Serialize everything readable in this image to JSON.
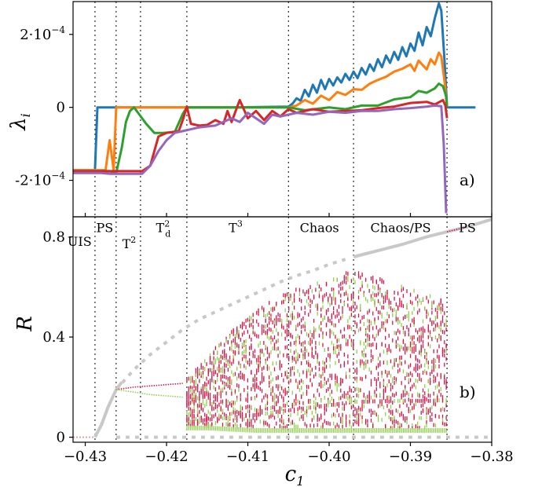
{
  "chart_data": [
    {
      "type": "line",
      "panel_tag": "a)",
      "ylabel_main": "λ",
      "ylabel_sub": "i",
      "ylim": [
        -0.0003,
        0.00029
      ],
      "yticks": [
        {
          "value": 0.0002,
          "label": "2·10",
          "exp": "−4"
        },
        {
          "value": 0,
          "label": "0",
          "exp": ""
        },
        {
          "value": -0.0002,
          "label": "-2·10",
          "exp": "−4"
        }
      ],
      "series": [
        {
          "color": "#1f77b4",
          "points": [
            [
              -0.4315,
              -0.000172
            ],
            [
              -0.4288,
              -0.000172
            ],
            [
              -0.4285,
              0
            ],
            [
              -0.42,
              0
            ],
            [
              -0.412,
              0
            ],
            [
              -0.405,
              2e-06
            ],
            [
              -0.4045,
              1e-05
            ],
            [
              -0.404,
              2.5e-05
            ],
            [
              -0.4035,
              1.8e-05
            ],
            [
              -0.403,
              4.8e-05
            ],
            [
              -0.4025,
              3e-05
            ],
            [
              -0.402,
              6.2e-05
            ],
            [
              -0.4015,
              4e-05
            ],
            [
              -0.401,
              7.5e-05
            ],
            [
              -0.4005,
              5e-05
            ],
            [
              -0.4,
              7.8e-05
            ],
            [
              -0.3995,
              6e-05
            ],
            [
              -0.399,
              8.2e-05
            ],
            [
              -0.3985,
              6.8e-05
            ],
            [
              -0.398,
              9.2e-05
            ],
            [
              -0.3975,
              7.5e-05
            ],
            [
              -0.397,
              9.8e-05
            ],
            [
              -0.3965,
              8e-05
            ],
            [
              -0.396,
              0.000108
            ],
            [
              -0.3955,
              9e-05
            ],
            [
              -0.395,
              0.000118
            ],
            [
              -0.3945,
              0.0001
            ],
            [
              -0.394,
              0.000132
            ],
            [
              -0.3935,
              0.00011
            ],
            [
              -0.393,
              0.000142
            ],
            [
              -0.3925,
              0.000122
            ],
            [
              -0.392,
              0.000152
            ],
            [
              -0.3915,
              0.00013
            ],
            [
              -0.391,
              0.000165
            ],
            [
              -0.3905,
              0.00014
            ],
            [
              -0.39,
              0.000175
            ],
            [
              -0.3895,
              0.000155
            ],
            [
              -0.389,
              0.000205
            ],
            [
              -0.3885,
              0.00017
            ],
            [
              -0.388,
              0.00022
            ],
            [
              -0.3875,
              0.000195
            ],
            [
              -0.387,
              0.000245
            ],
            [
              -0.3865,
              0.000285
            ],
            [
              -0.3862,
              0.000265
            ],
            [
              -0.3858,
              0.000125
            ],
            [
              -0.3855,
              0
            ],
            [
              -0.382,
              0
            ]
          ]
        },
        {
          "color": "#ff7f0e",
          "points": [
            [
              -0.4315,
              -0.000172
            ],
            [
              -0.4275,
              -0.000172
            ],
            [
              -0.427,
              -9e-05
            ],
            [
              -0.4265,
              -0.000172
            ],
            [
              -0.4262,
              0
            ],
            [
              -0.42,
              0
            ],
            [
              -0.412,
              0
            ],
            [
              -0.405,
              0
            ],
            [
              -0.404,
              5e-06
            ],
            [
              -0.403,
              2e-05
            ],
            [
              -0.402,
              1e-05
            ],
            [
              -0.401,
              3.2e-05
            ],
            [
              -0.4,
              2e-05
            ],
            [
              -0.399,
              4.2e-05
            ],
            [
              -0.398,
              3.4e-05
            ],
            [
              -0.397,
              5e-05
            ],
            [
              -0.396,
              4.8e-05
            ],
            [
              -0.395,
              6.5e-05
            ],
            [
              -0.394,
              7.5e-05
            ],
            [
              -0.393,
              8.4e-05
            ],
            [
              -0.392,
              9.8e-05
            ],
            [
              -0.391,
              0.000106
            ],
            [
              -0.39,
              0.000118
            ],
            [
              -0.3895,
              0.0001
            ],
            [
              -0.389,
              0.000128
            ],
            [
              -0.388,
              0.000104
            ],
            [
              -0.3875,
              0.000132
            ],
            [
              -0.387,
              0.000118
            ],
            [
              -0.3865,
              0.00015
            ],
            [
              -0.3862,
              0.00014
            ],
            [
              -0.3858,
              7e-05
            ],
            [
              -0.3855,
              0
            ]
          ]
        },
        {
          "color": "#2ca02c",
          "points": [
            [
              -0.4315,
              -0.000175
            ],
            [
              -0.427,
              -0.000175
            ],
            [
              -0.4262,
              -0.00018
            ],
            [
              -0.4255,
              -0.00011
            ],
            [
              -0.425,
              -4e-05
            ],
            [
              -0.4245,
              -1e-05
            ],
            [
              -0.424,
              0
            ],
            [
              -0.4235,
              -1.5e-05
            ],
            [
              -0.4225,
              -4.5e-05
            ],
            [
              -0.4215,
              -7e-05
            ],
            [
              -0.4205,
              -7e-05
            ],
            [
              -0.419,
              -6.8e-05
            ],
            [
              -0.418,
              -1.8e-05
            ],
            [
              -0.4175,
              0
            ],
            [
              -0.412,
              0
            ],
            [
              -0.405,
              0
            ],
            [
              -0.403,
              -8e-06
            ],
            [
              -0.4,
              0
            ],
            [
              -0.398,
              -5e-06
            ],
            [
              -0.396,
              5e-06
            ],
            [
              -0.394,
              5e-06
            ],
            [
              -0.392,
              2.2e-05
            ],
            [
              -0.39,
              2.8e-05
            ],
            [
              -0.389,
              4.5e-05
            ],
            [
              -0.388,
              4e-05
            ],
            [
              -0.387,
              5.2e-05
            ],
            [
              -0.3865,
              6.5e-05
            ],
            [
              -0.386,
              5.8e-05
            ],
            [
              -0.3856,
              3e-05
            ],
            [
              -0.3855,
              0
            ]
          ]
        },
        {
          "color": "#d62728",
          "points": [
            [
              -0.4315,
              -0.000175
            ],
            [
              -0.423,
              -0.000175
            ],
            [
              -0.422,
              -0.00016
            ],
            [
              -0.421,
              -8e-05
            ],
            [
              -0.42,
              -7e-05
            ],
            [
              -0.4185,
              -6.5e-05
            ],
            [
              -0.418,
              -3.5e-05
            ],
            [
              -0.4175,
              2e-06
            ],
            [
              -0.417,
              -4.5e-05
            ],
            [
              -0.416,
              -5e-05
            ],
            [
              -0.415,
              -4.8e-05
            ],
            [
              -0.414,
              -3.5e-05
            ],
            [
              -0.413,
              -4.5e-05
            ],
            [
              -0.4125,
              -1e-05
            ],
            [
              -0.412,
              -4e-05
            ],
            [
              -0.411,
              2e-05
            ],
            [
              -0.41,
              -3e-05
            ],
            [
              -0.409,
              -1e-05
            ],
            [
              -0.408,
              -3.5e-05
            ],
            [
              -0.407,
              -1e-05
            ],
            [
              -0.406,
              -2.5e-05
            ],
            [
              -0.405,
              -5e-06
            ],
            [
              -0.404,
              -1.5e-05
            ],
            [
              -0.402,
              -5e-06
            ],
            [
              -0.4,
              -1.2e-05
            ],
            [
              -0.398,
              -1e-05
            ],
            [
              -0.396,
              -8e-06
            ],
            [
              -0.394,
              -2e-06
            ],
            [
              -0.392,
              2e-06
            ],
            [
              -0.39,
              1.2e-05
            ],
            [
              -0.388,
              1.5e-05
            ],
            [
              -0.387,
              8e-06
            ],
            [
              -0.386,
              2e-05
            ],
            [
              -0.3857,
              5e-06
            ],
            [
              -0.3855,
              -3e-05
            ]
          ]
        },
        {
          "color": "#9467bd",
          "points": [
            [
              -0.4315,
              -0.00018
            ],
            [
              -0.429,
              -0.00018
            ],
            [
              -0.428,
              -0.00018
            ],
            [
              -0.427,
              -0.000182
            ],
            [
              -0.423,
              -0.000182
            ],
            [
              -0.422,
              -0.00016
            ],
            [
              -0.421,
              -0.00012
            ],
            [
              -0.42,
              -9e-05
            ],
            [
              -0.419,
              -7e-05
            ],
            [
              -0.418,
              -6.5e-05
            ],
            [
              -0.416,
              -5.5e-05
            ],
            [
              -0.414,
              -5e-05
            ],
            [
              -0.412,
              -3e-05
            ],
            [
              -0.411,
              -4e-05
            ],
            [
              -0.41,
              -1.5e-05
            ],
            [
              -0.409,
              -3e-05
            ],
            [
              -0.408,
              -4.5e-05
            ],
            [
              -0.407,
              -2e-05
            ],
            [
              -0.406,
              -2.5e-05
            ],
            [
              -0.404,
              -1.5e-05
            ],
            [
              -0.402,
              -2e-05
            ],
            [
              -0.4,
              -1.2e-05
            ],
            [
              -0.398,
              -1.5e-05
            ],
            [
              -0.396,
              -1e-05
            ],
            [
              -0.394,
              -1e-05
            ],
            [
              -0.392,
              -5e-06
            ],
            [
              -0.39,
              -2e-06
            ],
            [
              -0.388,
              2e-06
            ],
            [
              -0.387,
              5e-06
            ],
            [
              -0.3862,
              3e-06
            ],
            [
              -0.3859,
              -0.0001
            ],
            [
              -0.3856,
              -0.00029
            ]
          ]
        }
      ]
    },
    {
      "type": "scatter",
      "panel_tag": "b)",
      "ylabel": "R",
      "xlabel_main": "c",
      "xlabel_sub": "1",
      "xlim": [
        -0.4315,
        -0.38
      ],
      "ylim": [
        -0.02,
        0.88
      ],
      "xticks": [
        {
          "value": -0.43,
          "label": "−0.43"
        },
        {
          "value": -0.42,
          "label": "−0.42"
        },
        {
          "value": -0.41,
          "label": "−0.41"
        },
        {
          "value": -0.4,
          "label": "−0.40"
        },
        {
          "value": -0.39,
          "label": "−0.39"
        },
        {
          "value": -0.38,
          "label": "−0.38"
        }
      ],
      "yticks": [
        {
          "value": 0,
          "label": "0"
        },
        {
          "value": 0.4,
          "label": "0.4"
        },
        {
          "value": 0.8,
          "label": "0.8"
        }
      ],
      "regimes": [
        {
          "label": "UIS",
          "sup": "",
          "sub": "",
          "x": -0.4307,
          "y": 0.78
        },
        {
          "label": "PS",
          "sup": "",
          "sub": "",
          "x": -0.4276,
          "y": 0.835
        },
        {
          "label": "T",
          "sup": "2",
          "sub": "",
          "x": -0.4246,
          "y": 0.77
        },
        {
          "label": "T",
          "sup": "2",
          "sub": "d",
          "x": -0.4204,
          "y": 0.835
        },
        {
          "label": "T",
          "sup": "3",
          "sub": "",
          "x": -0.4115,
          "y": 0.835
        },
        {
          "label": "Chaos",
          "sup": "",
          "sub": "",
          "x": -0.4012,
          "y": 0.835
        },
        {
          "label": "Chaos/PS",
          "sup": "",
          "sub": "",
          "x": -0.3912,
          "y": 0.835
        },
        {
          "label": "PS",
          "sup": "",
          "sub": "",
          "x": -0.383,
          "y": 0.835
        }
      ],
      "boundaries": [
        -0.4288,
        -0.4262,
        -0.4232,
        -0.4175,
        -0.405,
        -0.397,
        -0.3855
      ],
      "colors": {
        "upper": "#d11a4a",
        "lower": "#8fd14f",
        "branch": "#c8c8c8",
        "uis": "#e8a0a0"
      },
      "stable_branch": [
        [
          -0.4288,
          0.0
        ],
        [
          -0.428,
          0.05
        ],
        [
          -0.4272,
          0.12
        ],
        [
          -0.4262,
          0.19
        ],
        [
          -0.4255,
          0.22
        ]
      ],
      "unstable_branch": [
        [
          -0.4262,
          0.19
        ],
        [
          -0.424,
          0.27
        ],
        [
          -0.422,
          0.33
        ],
        [
          -0.42,
          0.38
        ],
        [
          -0.418,
          0.43
        ],
        [
          -0.416,
          0.47
        ],
        [
          -0.414,
          0.5
        ],
        [
          -0.412,
          0.53
        ],
        [
          -0.41,
          0.56
        ],
        [
          -0.408,
          0.59
        ],
        [
          -0.406,
          0.62
        ],
        [
          -0.404,
          0.645
        ],
        [
          -0.402,
          0.665
        ],
        [
          -0.4,
          0.69
        ],
        [
          -0.398,
          0.71
        ]
      ],
      "sync_branch": [
        [
          -0.397,
          0.72
        ],
        [
          -0.394,
          0.745
        ],
        [
          -0.391,
          0.77
        ],
        [
          -0.388,
          0.8
        ],
        [
          -0.3855,
          0.82
        ],
        [
          -0.383,
          0.84
        ],
        [
          -0.38,
          0.87
        ]
      ],
      "zero_branch": [
        [
          -0.4262,
          0.0
        ],
        [
          -0.38,
          0.0
        ]
      ],
      "t2_upper": [
        [
          -0.4262,
          0.19
        ],
        [
          -0.424,
          0.2
        ],
        [
          -0.422,
          0.205
        ],
        [
          -0.42,
          0.21
        ],
        [
          -0.418,
          0.215
        ]
      ],
      "t2_lower": [
        [
          -0.4262,
          0.19
        ],
        [
          -0.424,
          0.18
        ],
        [
          -0.422,
          0.17
        ],
        [
          -0.42,
          0.165
        ],
        [
          -0.418,
          0.16
        ]
      ],
      "cloud_envelope": [
        [
          -0.4175,
          0.23,
          0.04
        ],
        [
          -0.415,
          0.32,
          0.04
        ],
        [
          -0.412,
          0.42,
          0.035
        ],
        [
          -0.409,
          0.5,
          0.03
        ],
        [
          -0.406,
          0.56,
          0.03
        ],
        [
          -0.403,
          0.6,
          0.03
        ],
        [
          -0.4,
          0.63,
          0.03
        ],
        [
          -0.397,
          0.66,
          0.03
        ],
        [
          -0.394,
          0.63,
          0.03
        ],
        [
          -0.391,
          0.6,
          0.03
        ],
        [
          -0.388,
          0.56,
          0.03
        ],
        [
          -0.3855,
          0.55,
          0.03
        ]
      ]
    }
  ]
}
